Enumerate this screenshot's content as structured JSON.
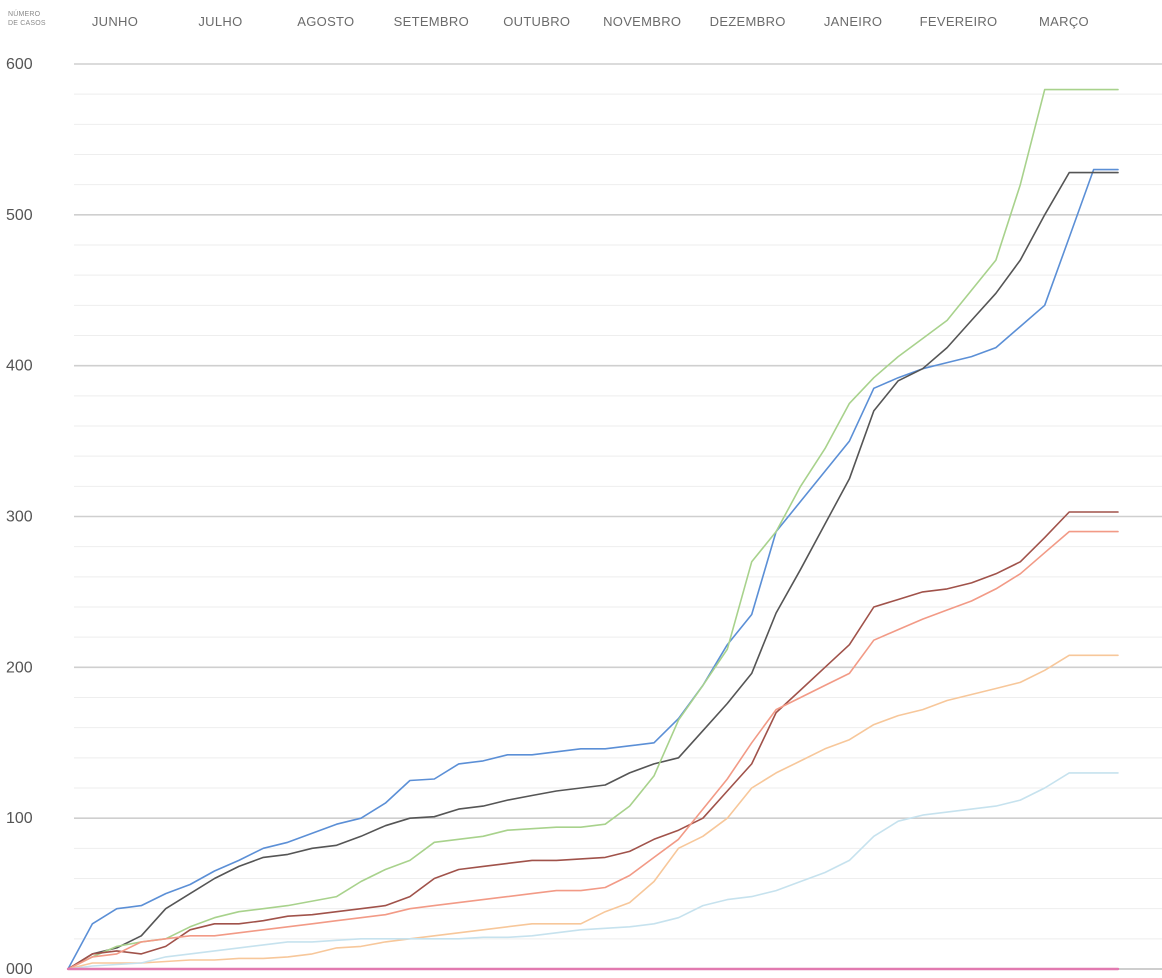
{
  "chart_data": {
    "type": "line",
    "title": "",
    "ylabel_lines": [
      "NÚMERO",
      "DE CASOS"
    ],
    "xlabel": "",
    "months": [
      "JUNHO",
      "JULHO",
      "AGOSTO",
      "SETEMBRO",
      "OUTUBRO",
      "NOVEMBRO",
      "DEZEMBRO",
      "JANEIRO",
      "FEVEREIRO",
      "MARÇO"
    ],
    "x_range": [
      0,
      43
    ],
    "ylim": [
      0,
      600
    ],
    "y_ticks": [
      {
        "value": 0,
        "label": "000"
      },
      {
        "value": 100,
        "label": "100"
      },
      {
        "value": 200,
        "label": "200"
      },
      {
        "value": 300,
        "label": "300"
      },
      {
        "value": 400,
        "label": "400"
      },
      {
        "value": 500,
        "label": "500"
      },
      {
        "value": 600,
        "label": "600"
      }
    ],
    "minor_grid_step": 20,
    "grid": true,
    "legend": "none",
    "x": [
      0,
      1,
      2,
      3,
      4,
      5,
      6,
      7,
      8,
      9,
      10,
      11,
      12,
      13,
      14,
      15,
      16,
      17,
      18,
      19,
      20,
      21,
      22,
      23,
      24,
      25,
      26,
      27,
      28,
      29,
      30,
      31,
      32,
      33,
      34,
      35,
      36,
      37,
      38,
      39,
      40,
      41,
      42,
      43
    ],
    "series": [
      {
        "color": "#5b8fd6",
        "values": [
          0,
          30,
          40,
          42,
          50,
          56,
          65,
          72,
          80,
          84,
          90,
          96,
          100,
          110,
          125,
          126,
          136,
          138,
          142,
          142,
          144,
          146,
          146,
          148,
          150,
          166,
          188,
          215,
          235,
          290,
          310,
          330,
          350,
          385,
          392,
          398,
          402,
          406,
          412,
          426,
          440,
          485,
          530,
          530
        ]
      },
      {
        "color": "#555555",
        "values": [
          0,
          10,
          14,
          22,
          40,
          50,
          60,
          68,
          74,
          76,
          80,
          82,
          88,
          95,
          100,
          101,
          106,
          108,
          112,
          115,
          118,
          120,
          122,
          130,
          136,
          140,
          158,
          176,
          196,
          236,
          265,
          295,
          325,
          370,
          390,
          398,
          412,
          430,
          448,
          470,
          500,
          528,
          528,
          528
        ]
      },
      {
        "color": "#a8d28c",
        "values": [
          0,
          8,
          15,
          18,
          20,
          28,
          34,
          38,
          40,
          42,
          45,
          48,
          58,
          66,
          72,
          84,
          86,
          88,
          92,
          93,
          94,
          94,
          96,
          108,
          128,
          165,
          188,
          212,
          270,
          290,
          320,
          345,
          375,
          392,
          406,
          418,
          430,
          450,
          470,
          520,
          583,
          583,
          583,
          583
        ]
      },
      {
        "color": "#a0524a",
        "values": [
          0,
          10,
          12,
          10,
          15,
          26,
          30,
          30,
          32,
          35,
          36,
          38,
          40,
          42,
          48,
          60,
          66,
          68,
          70,
          72,
          72,
          73,
          74,
          78,
          86,
          92,
          100,
          118,
          136,
          170,
          185,
          200,
          215,
          240,
          245,
          250,
          252,
          256,
          262,
          270,
          286,
          303,
          303,
          303
        ]
      },
      {
        "color": "#f29a86",
        "values": [
          0,
          8,
          10,
          18,
          20,
          22,
          22,
          24,
          26,
          28,
          30,
          32,
          34,
          36,
          40,
          42,
          44,
          46,
          48,
          50,
          52,
          52,
          54,
          62,
          74,
          86,
          106,
          126,
          150,
          172,
          180,
          188,
          196,
          218,
          225,
          232,
          238,
          244,
          252,
          262,
          276,
          290,
          290,
          290
        ]
      },
      {
        "color": "#f7c79a",
        "values": [
          0,
          4,
          4,
          4,
          5,
          6,
          6,
          7,
          7,
          8,
          10,
          14,
          15,
          18,
          20,
          22,
          24,
          26,
          28,
          30,
          30,
          30,
          38,
          44,
          58,
          80,
          88,
          100,
          120,
          130,
          138,
          146,
          152,
          162,
          168,
          172,
          178,
          182,
          186,
          190,
          198,
          208,
          208,
          208
        ]
      },
      {
        "color": "#c6e2ee",
        "values": [
          0,
          2,
          3,
          4,
          8,
          10,
          12,
          14,
          16,
          18,
          18,
          19,
          20,
          20,
          20,
          20,
          20,
          21,
          21,
          22,
          24,
          26,
          27,
          28,
          30,
          34,
          42,
          46,
          48,
          52,
          58,
          64,
          72,
          88,
          98,
          102,
          104,
          106,
          108,
          112,
          120,
          130,
          130,
          130
        ]
      },
      {
        "color": "#e27ab0",
        "values": [
          0,
          0,
          0,
          0,
          0,
          0,
          0,
          0,
          0,
          0,
          0,
          0,
          0,
          0,
          0,
          0,
          0,
          0,
          0,
          0,
          0,
          0,
          0,
          0,
          0,
          0,
          0,
          0,
          0,
          0,
          0,
          0,
          0,
          0,
          0,
          0,
          0,
          0,
          0,
          0,
          0,
          0,
          0,
          0
        ]
      }
    ]
  },
  "colors": {
    "major_grid": "#cfcfcf",
    "minor_grid": "#eeeeee",
    "axis": "#bdbdbd"
  }
}
